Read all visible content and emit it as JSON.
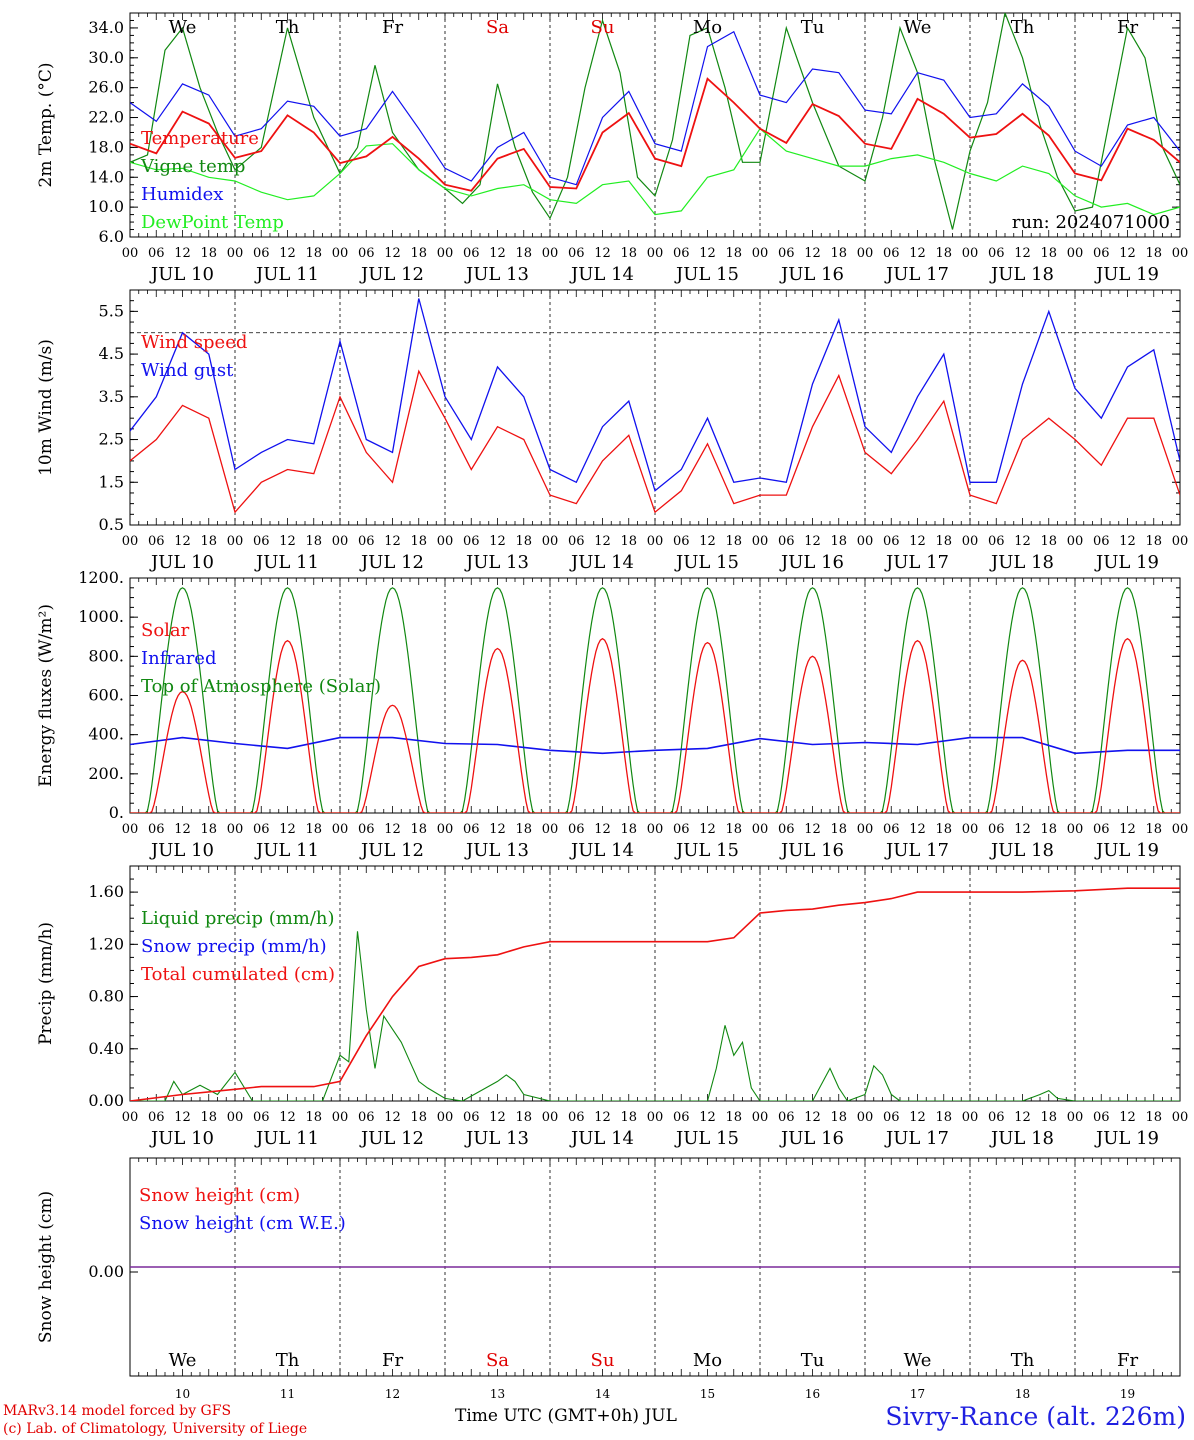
{
  "days": [
    "We",
    "Th",
    "Fr",
    "Sa",
    "Su",
    "Mo",
    "Tu",
    "We",
    "Th",
    "Fr"
  ],
  "day_colors": [
    "#000000",
    "#000000",
    "#000000",
    "#e00000",
    "#e00000",
    "#000000",
    "#000000",
    "#000000",
    "#000000",
    "#000000"
  ],
  "date_labels": [
    "JUL 10",
    "JUL 11",
    "JUL 12",
    "JUL 13",
    "JUL 14",
    "JUL 15",
    "JUL 16",
    "JUL 17",
    "JUL 18",
    "JUL 19"
  ],
  "day_numbers": [
    "10",
    "11",
    "12",
    "13",
    "14",
    "15",
    "16",
    "17",
    "18",
    "19"
  ],
  "hour_ticks": [
    "00",
    "06",
    "12",
    "18"
  ],
  "footer": {
    "model": "MARv3.14 model forced by GFS",
    "lab": "(c) Lab. of Climatology, University of Liege",
    "axis_title": "Time UTC (GMT+0h) JUL",
    "station": "Sivry-Rance (alt. 226m)"
  },
  "chart_data": [
    {
      "type": "line",
      "ylabel": "2m Temp. (°C)",
      "ylim": [
        6,
        36
      ],
      "yticks": [
        "6.0",
        "10.0",
        "14.0",
        "18.0",
        "22.0",
        "26.0",
        "30.0",
        "34.0"
      ],
      "ytick_values": [
        6,
        10,
        14,
        18,
        22,
        26,
        30,
        34
      ],
      "annotation": "run: 2024071000",
      "colors": {
        "Temperature": "#ee1111",
        "Vigne temp": "#118811",
        "Humidex": "#1111ee",
        "DewPoint Temp": "#22ee22"
      },
      "series": [
        {
          "name": "Temperature",
          "x": [
            0,
            6,
            12,
            18,
            24,
            30,
            36,
            42,
            48,
            54,
            60,
            66,
            72,
            78,
            84,
            90,
            96,
            102,
            108,
            114,
            120,
            126,
            132,
            138,
            144,
            150,
            156,
            162,
            168,
            174,
            180,
            186,
            192,
            198,
            204,
            210,
            216,
            222,
            228,
            234,
            240
          ],
          "values": [
            18.5,
            17.2,
            22.8,
            21.2,
            16.6,
            17.5,
            22.3,
            20.0,
            15.9,
            16.8,
            19.4,
            16.5,
            13.0,
            12.2,
            16.5,
            17.8,
            12.7,
            12.5,
            20.0,
            22.6,
            16.5,
            15.5,
            27.2,
            24.0,
            20.5,
            18.6,
            23.8,
            22.2,
            18.5,
            17.8,
            24.5,
            22.5,
            19.3,
            19.8,
            22.5,
            19.6,
            14.5,
            13.6,
            20.5,
            19.0,
            16.0
          ]
        },
        {
          "name": "Vigne temp",
          "x": [
            0,
            4,
            8,
            12,
            16,
            20,
            24,
            30,
            36,
            42,
            48,
            52,
            56,
            60,
            66,
            72,
            76,
            80,
            84,
            88,
            92,
            96,
            100,
            104,
            108,
            112,
            116,
            120,
            124,
            128,
            132,
            136,
            140,
            144,
            150,
            156,
            162,
            168,
            172,
            176,
            180,
            184,
            188,
            192,
            196,
            200,
            204,
            208,
            212,
            216,
            220,
            224,
            228,
            232,
            236,
            240
          ],
          "values": [
            16.0,
            17.0,
            31.0,
            34.0,
            26.0,
            20.0,
            15.0,
            18.0,
            34.0,
            22.0,
            14.5,
            18.0,
            29.0,
            20.0,
            15.0,
            12.5,
            10.5,
            13.0,
            26.5,
            18.0,
            12.0,
            8.5,
            14.0,
            26.0,
            35.0,
            28.0,
            14.0,
            11.5,
            19.0,
            33.0,
            34.0,
            26.0,
            16.0,
            16.0,
            34.0,
            24.0,
            15.5,
            13.5,
            22.0,
            34.0,
            28.0,
            16.0,
            7.0,
            17.5,
            24.0,
            36.0,
            30.0,
            21.0,
            14.0,
            9.5,
            10.0,
            22.0,
            34.0,
            30.0,
            18.0,
            13.0
          ]
        },
        {
          "name": "Humidex",
          "x": [
            0,
            6,
            12,
            18,
            24,
            30,
            36,
            42,
            48,
            54,
            60,
            66,
            72,
            78,
            84,
            90,
            96,
            102,
            108,
            114,
            120,
            126,
            132,
            138,
            144,
            150,
            156,
            162,
            168,
            174,
            180,
            186,
            192,
            198,
            204,
            210,
            216,
            222,
            228,
            234,
            240
          ],
          "values": [
            24.0,
            21.5,
            26.5,
            25.0,
            19.5,
            20.5,
            24.2,
            23.5,
            19.5,
            20.5,
            25.5,
            20.5,
            15.2,
            13.5,
            18.0,
            20.0,
            14.0,
            13.0,
            22.0,
            25.5,
            18.5,
            17.5,
            31.5,
            33.5,
            25.0,
            24.0,
            28.5,
            28.0,
            23.0,
            22.5,
            28.0,
            27.0,
            22.0,
            22.5,
            26.5,
            23.5,
            17.5,
            15.5,
            21.0,
            22.0,
            17.5
          ]
        },
        {
          "name": "DewPoint Temp",
          "x": [
            0,
            6,
            12,
            18,
            24,
            30,
            36,
            42,
            48,
            54,
            60,
            66,
            72,
            78,
            84,
            90,
            96,
            102,
            108,
            114,
            120,
            126,
            132,
            138,
            144,
            150,
            156,
            162,
            168,
            174,
            180,
            186,
            192,
            198,
            204,
            210,
            216,
            222,
            228,
            234,
            240
          ],
          "values": [
            16.0,
            15.0,
            15.2,
            14.0,
            13.5,
            12.0,
            11.0,
            11.5,
            14.5,
            18.2,
            18.5,
            15.0,
            12.5,
            11.5,
            12.5,
            13.0,
            11.0,
            10.5,
            13.0,
            13.5,
            9.0,
            9.5,
            14.0,
            15.0,
            20.5,
            17.5,
            16.5,
            15.5,
            15.5,
            16.5,
            17.0,
            16.0,
            14.5,
            13.5,
            15.5,
            14.5,
            11.5,
            10.0,
            10.5,
            9.0,
            10.0
          ]
        }
      ]
    },
    {
      "type": "line",
      "ylabel": "10m Wind (m/s)",
      "ylim": [
        0.5,
        6.0
      ],
      "yticks": [
        "0.5",
        "1.5",
        "2.5",
        "3.5",
        "4.5",
        "5.5"
      ],
      "ytick_values": [
        0.5,
        1.5,
        2.5,
        3.5,
        4.5,
        5.5
      ],
      "reference_line": 5.0,
      "colors": {
        "Wind speed": "#ee1111",
        "Wind gust": "#1111ee"
      },
      "series": [
        {
          "name": "Wind speed",
          "x": [
            0,
            6,
            12,
            18,
            24,
            30,
            36,
            42,
            48,
            54,
            60,
            66,
            72,
            78,
            84,
            90,
            96,
            102,
            108,
            114,
            120,
            126,
            132,
            138,
            144,
            150,
            156,
            162,
            168,
            174,
            180,
            186,
            192,
            198,
            204,
            210,
            216,
            222,
            228,
            234,
            240
          ],
          "values": [
            2.0,
            2.5,
            3.3,
            3.0,
            0.8,
            1.5,
            1.8,
            1.7,
            3.5,
            2.2,
            1.5,
            4.1,
            3.0,
            1.8,
            2.8,
            2.5,
            1.2,
            1.0,
            2.0,
            2.6,
            0.8,
            1.3,
            2.4,
            1.0,
            1.2,
            1.2,
            2.8,
            4.0,
            2.2,
            1.7,
            2.5,
            3.4,
            1.2,
            1.0,
            2.5,
            3.0,
            2.5,
            1.9,
            3.0,
            3.0,
            1.2
          ]
        },
        {
          "name": "Wind gust",
          "x": [
            0,
            6,
            12,
            18,
            24,
            30,
            36,
            42,
            48,
            54,
            60,
            66,
            72,
            78,
            84,
            90,
            96,
            102,
            108,
            114,
            120,
            126,
            132,
            138,
            144,
            150,
            156,
            162,
            168,
            174,
            180,
            186,
            192,
            198,
            204,
            210,
            216,
            222,
            228,
            234,
            240
          ],
          "values": [
            2.7,
            3.5,
            5.0,
            4.5,
            1.8,
            2.2,
            2.5,
            2.4,
            4.8,
            2.5,
            2.2,
            5.8,
            3.5,
            2.5,
            4.2,
            3.5,
            1.8,
            1.5,
            2.8,
            3.4,
            1.3,
            1.8,
            3.0,
            1.5,
            1.6,
            1.5,
            3.8,
            5.3,
            2.8,
            2.2,
            3.5,
            4.5,
            1.5,
            1.5,
            3.8,
            5.5,
            3.7,
            3.0,
            4.2,
            4.6,
            2.0
          ]
        }
      ]
    },
    {
      "type": "line",
      "ylabel": "Energy fluxes (W/m²)",
      "ylim": [
        0,
        1200
      ],
      "yticks": [
        "0.",
        "200.",
        "400.",
        "600.",
        "800.",
        "1000.",
        "1200."
      ],
      "ytick_values": [
        0,
        200,
        400,
        600,
        800,
        1000,
        1200
      ],
      "colors": {
        "Solar": "#ee1111",
        "Infrared": "#1111ee",
        "Top of Atmosphere (Solar)": "#118811"
      },
      "toa_peak": 1150,
      "solar_peaks": [
        620,
        880,
        550,
        840,
        890,
        870,
        800,
        880,
        780,
        890
      ],
      "series": [
        {
          "name": "Infrared",
          "x": [
            0,
            12,
            24,
            36,
            48,
            60,
            72,
            84,
            96,
            108,
            120,
            132,
            144,
            156,
            168,
            180,
            192,
            204,
            216,
            228,
            240
          ],
          "values": [
            350,
            385,
            355,
            330,
            385,
            385,
            355,
            350,
            320,
            305,
            320,
            330,
            380,
            350,
            360,
            350,
            385,
            385,
            305,
            320,
            320
          ]
        }
      ]
    },
    {
      "type": "line",
      "ylabel": "Precip (mm/h)",
      "ylim": [
        0,
        1.8
      ],
      "yticks": [
        "0.00",
        "0.40",
        "0.80",
        "1.20",
        "1.60"
      ],
      "ytick_values": [
        0,
        0.4,
        0.8,
        1.2,
        1.6
      ],
      "colors": {
        "Liquid precip (mm/h)": "#118811",
        "Snow precip (mm/h)": "#1111ee",
        "Total cumulated (cm)": "#ee1111"
      },
      "series": [
        {
          "name": "Total cumulated (cm)",
          "x": [
            0,
            12,
            24,
            30,
            36,
            42,
            48,
            54,
            60,
            66,
            72,
            78,
            84,
            90,
            96,
            108,
            120,
            132,
            138,
            144,
            150,
            156,
            162,
            168,
            174,
            180,
            192,
            204,
            216,
            228,
            240
          ],
          "values": [
            0,
            0.05,
            0.09,
            0.11,
            0.11,
            0.11,
            0.15,
            0.5,
            0.8,
            1.03,
            1.09,
            1.1,
            1.12,
            1.18,
            1.22,
            1.22,
            1.22,
            1.22,
            1.25,
            1.44,
            1.46,
            1.47,
            1.5,
            1.52,
            1.55,
            1.6,
            1.6,
            1.6,
            1.61,
            1.63,
            1.63
          ]
        },
        {
          "name": "Liquid precip (mm/h)",
          "x": [
            0,
            8,
            10,
            12,
            16,
            20,
            24,
            28,
            36,
            44,
            48,
            50,
            52,
            54,
            56,
            58,
            60,
            62,
            64,
            66,
            68,
            72,
            76,
            84,
            86,
            88,
            90,
            96,
            108,
            132,
            134,
            136,
            138,
            140,
            142,
            144,
            150,
            156,
            160,
            162,
            164,
            168,
            170,
            172,
            174,
            176,
            180,
            204,
            208,
            210,
            212,
            216,
            240
          ],
          "values": [
            0,
            0,
            0.15,
            0.05,
            0.12,
            0.05,
            0.22,
            0,
            0,
            0,
            0.35,
            0.3,
            1.3,
            0.7,
            0.25,
            0.65,
            0.55,
            0.45,
            0.3,
            0.15,
            0.1,
            0.02,
            0,
            0.15,
            0.2,
            0.15,
            0.05,
            0,
            0,
            0,
            0.25,
            0.58,
            0.35,
            0.45,
            0.1,
            0,
            0,
            0,
            0.25,
            0.1,
            0,
            0.05,
            0.27,
            0.2,
            0.05,
            0,
            0,
            0,
            0.05,
            0.08,
            0.02,
            0,
            0
          ]
        },
        {
          "name": "Snow precip (mm/h)",
          "values": []
        }
      ]
    },
    {
      "type": "line",
      "ylabel": "Snow height (cm)",
      "yticks": [
        "0.00"
      ],
      "ytick_values": [
        0
      ],
      "colors": {
        "Snow height (cm)": "#ee1111",
        "Snow height (cm W.E.)": "#1111ee"
      },
      "series": [
        {
          "name": "Snow height (cm)",
          "x": [
            0,
            240
          ],
          "values": [
            0,
            0
          ]
        },
        {
          "name": "Snow height (cm W.E.)",
          "x": [
            0,
            240
          ],
          "values": [
            0,
            0
          ]
        }
      ]
    }
  ]
}
